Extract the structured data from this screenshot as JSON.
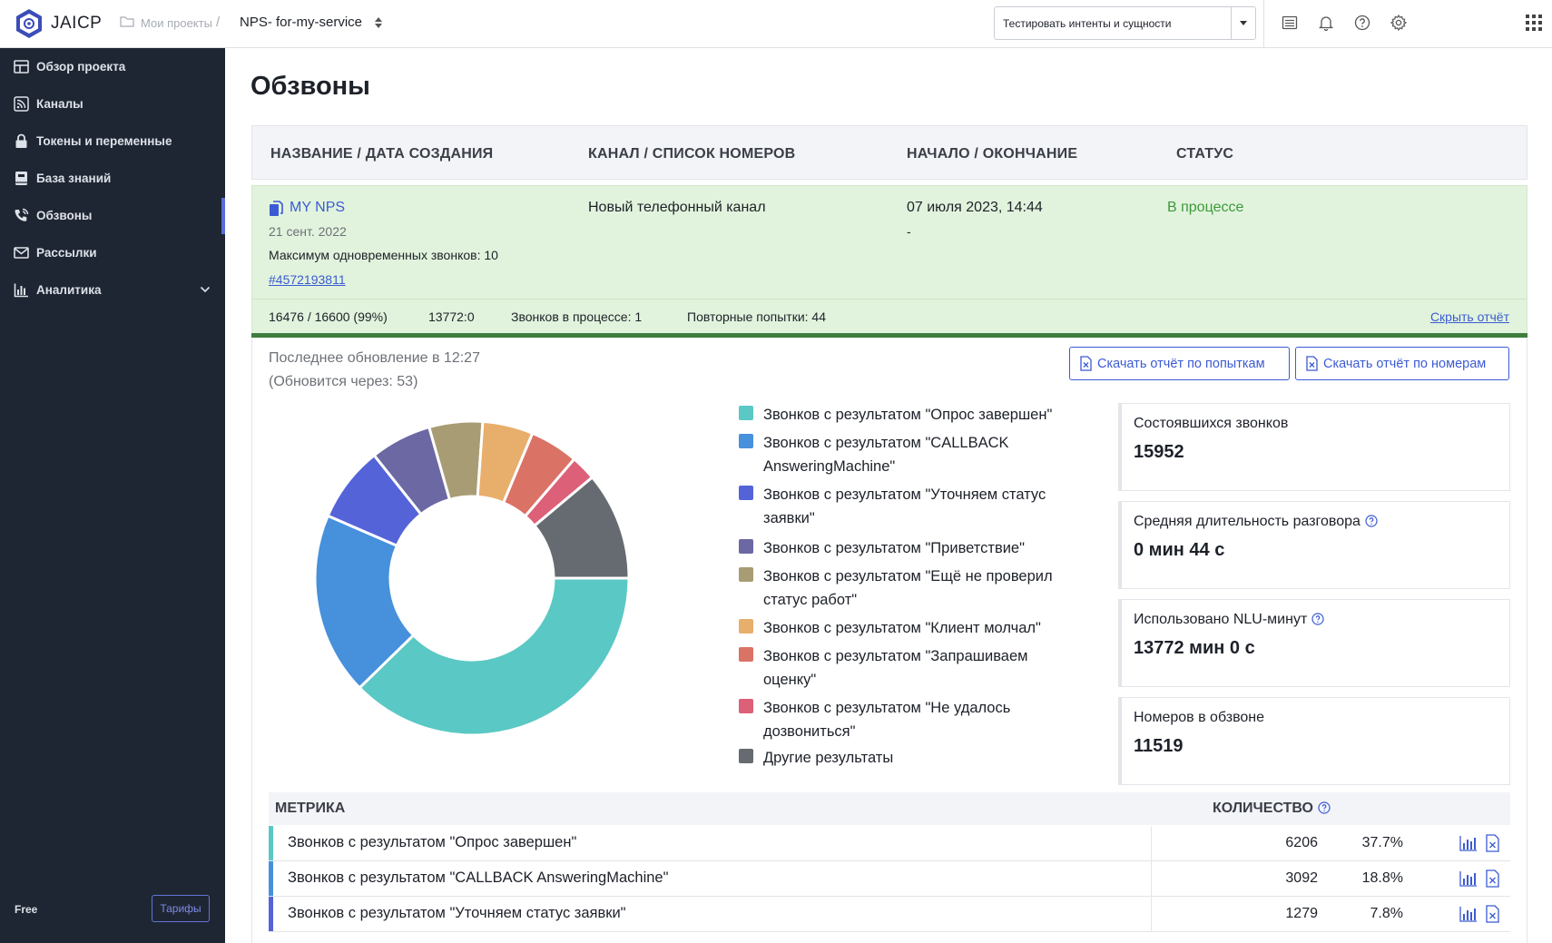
{
  "app": {
    "name": "JAICP"
  },
  "breadcrumb": {
    "projects": "Мои проекты",
    "separator": "/",
    "project": "NPS- for-my-service"
  },
  "test_select": {
    "label": "Тестировать интенты и сущности"
  },
  "sidebar": {
    "items": [
      {
        "label": "Обзор проекта",
        "icon": "dashboard-icon"
      },
      {
        "label": "Каналы",
        "icon": "rss-icon"
      },
      {
        "label": "Токены и переменные",
        "icon": "lock-icon"
      },
      {
        "label": "База знаний",
        "icon": "book-icon"
      },
      {
        "label": "Обзвоны",
        "icon": "phone-call-icon",
        "active": true
      },
      {
        "label": "Рассылки",
        "icon": "mail-icon"
      },
      {
        "label": "Аналитика",
        "icon": "bar-chart-icon"
      }
    ],
    "plan": "Free",
    "tariffs": "Тарифы"
  },
  "page": {
    "title": "Обзвоны"
  },
  "table": {
    "headers": [
      "НАЗВАНИЕ / ДАТА СОЗДАНИЯ",
      "КАНАЛ / СПИСОК НОМЕРОВ",
      "НАЧАЛО / ОКОНЧАНИЕ",
      "СТАТУС"
    ]
  },
  "campaign": {
    "name": "MY NPS",
    "created": "21 сент. 2022",
    "max_calls": "Максимум одновременных звонков: 10",
    "list_id": "#4572193811",
    "channel": "Новый телефонный канал",
    "start": "07 июля 2023, 14:44",
    "end": "-",
    "status": "В процессе",
    "stats": {
      "progress": "16476 / 16600 (99%)",
      "ratio": "13772:0",
      "in_progress": "Звонков в процессе: 1",
      "retries": "Повторные попытки: 44"
    },
    "progress_value": 0.99,
    "hide_report": "Скрыть отчёт"
  },
  "report": {
    "last_update": "Последнее обновление в 12:27",
    "next_update": "(Обновится через: 53)",
    "download_attempts": "Скачать отчёт по попыткам",
    "download_numbers": "Скачать отчёт по номерам"
  },
  "chart_data": {
    "type": "pie",
    "categories": [
      "Звонков с результатом \"Опрос завершен\"",
      "Звонков с результатом \"CALLBACK AnsweringMachine\"",
      "Звонков с результатом \"Уточняем статус заявки\"",
      "Звонков с результатом \"Приветствие\"",
      "Звонков с результатом \"Ещё не проверил статус работ\"",
      "Звонков с результатом \"Клиент молчал\"",
      "Звонков с результатом \"Запрашиваем оценку\"",
      "Звонков с результатом \"Не удалось дозвониться\"",
      "Другие результаты"
    ],
    "values": [
      37.7,
      18.8,
      7.8,
      6.3,
      5.5,
      5.2,
      5.0,
      2.6,
      11.1
    ],
    "colors": [
      "#5ac8c4",
      "#4690dc",
      "#5563d8",
      "#6b68a4",
      "#a89c74",
      "#e8ae6c",
      "#db7266",
      "#dc6078",
      "#666b71"
    ],
    "donut": true
  },
  "cards": [
    {
      "label": "Состоявшихся звонков",
      "value": "15952",
      "help": false
    },
    {
      "label": "Средняя длительность разговора",
      "value": "0 мин 44 с",
      "help": true
    },
    {
      "label": "Использовано NLU-минут",
      "value": "13772 мин 0 с",
      "help": true
    },
    {
      "label": "Номеров в обзвоне",
      "value": "11519",
      "help": false
    }
  ],
  "metrics": {
    "headers": {
      "metric": "МЕТРИКА",
      "count": "КОЛИЧЕСТВО"
    },
    "rows": [
      {
        "name": "Звонков с результатом \"Опрос завершен\"",
        "count": "6206",
        "pct": "37.7%",
        "color": "#5ac8c4"
      },
      {
        "name": "Звонков с результатом \"CALLBACK AnsweringMachine\"",
        "count": "3092",
        "pct": "18.8%",
        "color": "#4690dc"
      },
      {
        "name": "Звонков с результатом \"Уточняем статус заявки\"",
        "count": "1279",
        "pct": "7.8%",
        "color": "#5563d8"
      }
    ]
  }
}
